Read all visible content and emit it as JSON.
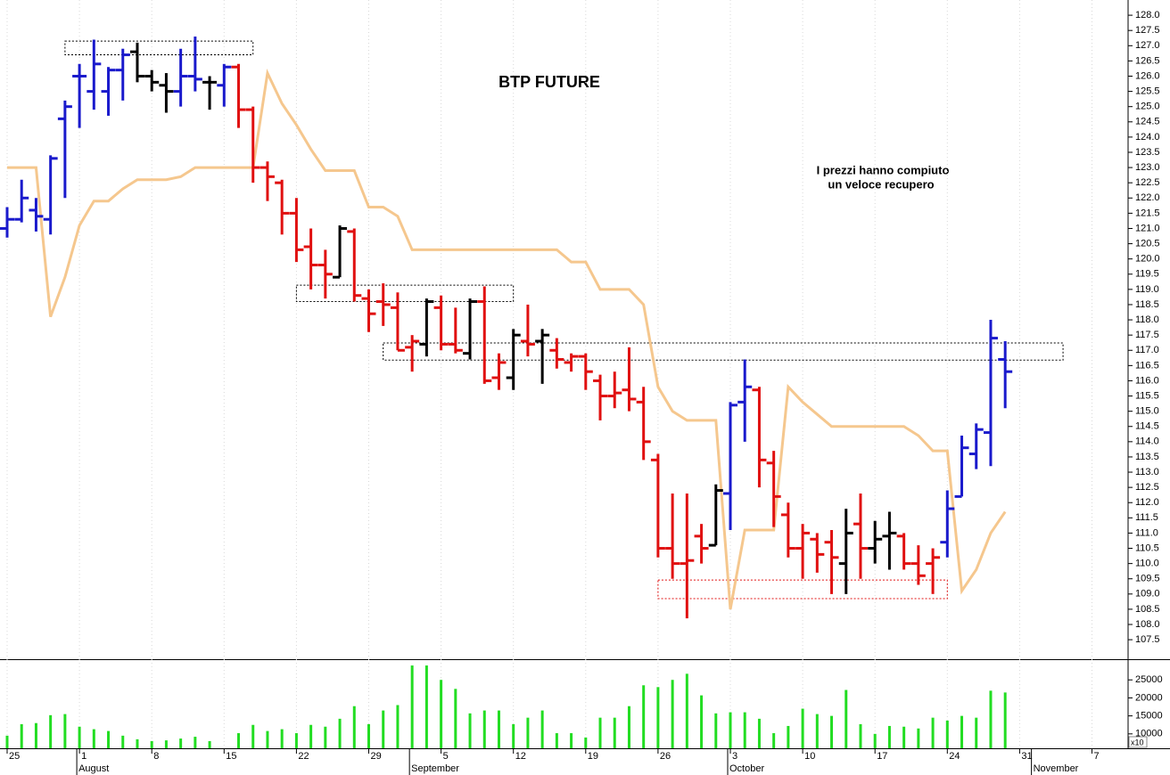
{
  "chart_data": {
    "type": "ohlc",
    "title": "BTP FUTURE",
    "annotations": [
      "I prezzi hanno compiuto",
      "un veloce recupero"
    ],
    "annotation_color": "#1a1acc",
    "categories": [
      "25",
      null,
      null,
      null,
      null,
      "1",
      null,
      null,
      null,
      null,
      "8",
      null,
      null,
      null,
      null,
      "15",
      null,
      null,
      null,
      null,
      "22",
      null,
      null,
      null,
      null,
      "29",
      null,
      null,
      null,
      null,
      "5",
      null,
      null,
      null,
      null,
      "12",
      null,
      null,
      null,
      null,
      "19",
      null,
      null,
      null,
      null,
      "26",
      null,
      null,
      null,
      null,
      "3",
      null,
      null,
      null,
      null,
      "10",
      null,
      null,
      null,
      null,
      "17",
      null,
      null,
      null,
      null,
      "24",
      null,
      null,
      null,
      null,
      "31",
      null,
      null,
      null,
      null,
      "7"
    ],
    "months": [
      null,
      null,
      null,
      null,
      null,
      "August",
      null,
      null,
      null,
      null,
      null,
      null,
      null,
      null,
      null,
      null,
      null,
      null,
      null,
      null,
      null,
      null,
      null,
      null,
      null,
      null,
      null,
      null,
      "September",
      null,
      null,
      null,
      null,
      null,
      null,
      null,
      null,
      null,
      null,
      null,
      null,
      null,
      null,
      null,
      null,
      null,
      null,
      null,
      null,
      null,
      "October",
      null,
      null,
      null,
      null,
      null,
      null,
      null,
      null,
      null,
      null,
      null,
      null,
      null,
      null,
      null,
      null,
      null,
      null,
      null,
      null,
      "November",
      null,
      null,
      null,
      null
    ],
    "open": [
      121.0,
      121.3,
      121.6,
      121.3,
      124.6,
      126.0,
      125.5,
      125.5,
      126.2,
      126.8,
      126.0,
      125.7,
      125.5,
      126.0,
      125.8,
      125.7,
      126.3,
      124.9,
      123.0,
      122.5,
      121.5,
      120.4,
      119.8,
      119.4,
      120.9,
      118.7,
      118.6,
      118.4,
      117.1,
      117.2,
      118.4,
      117.2,
      116.9,
      118.6,
      116.1,
      116.1,
      117.3,
      117.3,
      117.0,
      116.6,
      116.8,
      116.0,
      115.5,
      115.7,
      115.3,
      113.4,
      110.5,
      110.0,
      110.9,
      110.6,
      112.3,
      115.3,
      115.7,
      113.3,
      111.6,
      110.5,
      110.8,
      110.7,
      110.0,
      111.3,
      110.5,
      110.9,
      110.9,
      110.0,
      110.0,
      110.7,
      112.2,
      113.6,
      114.3,
      116.7,
      null,
      null,
      null,
      null,
      null,
      null
    ],
    "high": [
      121.7,
      122.6,
      122.0,
      123.4,
      125.2,
      126.4,
      127.2,
      126.3,
      126.9,
      127.1,
      126.2,
      126.1,
      126.9,
      127.3,
      126.0,
      126.4,
      126.4,
      125.0,
      123.2,
      122.6,
      122.0,
      121.0,
      120.3,
      121.1,
      121.0,
      119.0,
      119.2,
      118.9,
      117.5,
      118.7,
      118.8,
      118.4,
      118.7,
      119.1,
      116.9,
      117.7,
      118.5,
      117.7,
      117.4,
      116.9,
      116.9,
      116.2,
      116.3,
      117.1,
      115.8,
      113.6,
      112.3,
      112.3,
      111.3,
      112.6,
      115.3,
      116.7,
      115.8,
      113.7,
      112.0,
      111.3,
      111.0,
      111.1,
      111.8,
      112.3,
      111.4,
      111.7,
      111.0,
      110.6,
      110.5,
      112.4,
      114.2,
      114.6,
      118.0,
      117.3,
      null,
      null,
      null,
      null,
      null,
      null
    ],
    "low": [
      120.7,
      121.2,
      120.9,
      120.8,
      122.0,
      124.3,
      124.9,
      124.7,
      125.2,
      125.8,
      125.5,
      124.8,
      125.0,
      125.5,
      124.9,
      125.0,
      124.3,
      122.5,
      121.9,
      120.8,
      119.9,
      119.0,
      118.7,
      119.4,
      118.6,
      117.6,
      117.8,
      117.0,
      116.3,
      116.8,
      117.0,
      116.9,
      116.7,
      115.9,
      115.7,
      115.7,
      116.8,
      115.9,
      116.4,
      116.3,
      115.7,
      114.7,
      115.1,
      115.0,
      113.4,
      110.2,
      109.5,
      108.2,
      110.0,
      110.6,
      111.1,
      114.0,
      112.5,
      111.2,
      110.2,
      109.5,
      109.7,
      109.0,
      109.0,
      109.5,
      110.0,
      109.8,
      109.8,
      109.3,
      109.0,
      110.2,
      112.2,
      113.1,
      113.2,
      115.1,
      null,
      null,
      null,
      null,
      null,
      null
    ],
    "close": [
      121.3,
      122.0,
      121.4,
      123.3,
      125.0,
      126.0,
      126.4,
      126.2,
      126.7,
      126.0,
      125.8,
      125.5,
      126.0,
      125.9,
      125.8,
      126.3,
      124.9,
      123.0,
      122.7,
      121.5,
      120.3,
      119.8,
      119.5,
      121.0,
      118.8,
      118.2,
      118.5,
      117.0,
      117.3,
      118.6,
      117.2,
      117.0,
      118.6,
      116.0,
      116.6,
      117.5,
      117.2,
      117.5,
      116.7,
      116.8,
      116.3,
      115.5,
      115.6,
      115.4,
      114.0,
      110.5,
      110.0,
      110.1,
      110.5,
      112.4,
      115.2,
      115.8,
      113.4,
      112.2,
      110.5,
      111.0,
      110.3,
      110.2,
      111.0,
      110.5,
      110.8,
      111.0,
      110.0,
      109.6,
      110.2,
      111.8,
      113.8,
      114.4,
      117.4,
      116.3,
      null,
      null,
      null,
      null,
      null,
      null
    ],
    "colors": [
      "#1a1acc",
      "#1a1acc",
      "#1a1acc",
      "#1a1acc",
      "#1a1acc",
      "#1a1acc",
      "#1a1acc",
      "#1a1acc",
      "#1a1acc",
      "#000000",
      "#000000",
      "#000000",
      "#1a1acc",
      "#1a1acc",
      "#000000",
      "#1a1acc",
      "#e01010",
      "#e01010",
      "#e01010",
      "#e01010",
      "#e01010",
      "#e01010",
      "#e01010",
      "#000000",
      "#e01010",
      "#e01010",
      "#e01010",
      "#e01010",
      "#e01010",
      "#000000",
      "#e01010",
      "#e01010",
      "#000000",
      "#e01010",
      "#e01010",
      "#000000",
      "#e01010",
      "#000000",
      "#e01010",
      "#e01010",
      "#e01010",
      "#e01010",
      "#e01010",
      "#e01010",
      "#e01010",
      "#e01010",
      "#e01010",
      "#e01010",
      "#e01010",
      "#000000",
      "#1a1acc",
      "#1a1acc",
      "#e01010",
      "#e01010",
      "#e01010",
      "#e01010",
      "#e01010",
      "#e01010",
      "#000000",
      "#e01010",
      "#000000",
      "#000000",
      "#e01010",
      "#e01010",
      "#e01010",
      "#1a1acc",
      "#1a1acc",
      "#1a1acc",
      "#1a1acc",
      "#1a1acc",
      null,
      null,
      null,
      null,
      null,
      null
    ],
    "moving_average": {
      "color": "#f5c78e",
      "values": [
        123.0,
        123.0,
        123.0,
        118.1,
        119.4,
        121.1,
        121.9,
        121.9,
        122.3,
        122.6,
        122.6,
        122.6,
        122.7,
        123.0,
        123.0,
        123.0,
        123.0,
        123.0,
        126.1,
        125.1,
        124.4,
        123.6,
        122.9,
        122.9,
        122.9,
        121.7,
        121.7,
        121.4,
        120.3,
        120.3,
        120.3,
        120.3,
        120.3,
        120.3,
        120.3,
        120.3,
        120.3,
        120.3,
        120.3,
        119.9,
        119.9,
        119.0,
        119.0,
        119.0,
        118.5,
        115.8,
        115.0,
        114.7,
        114.7,
        114.7,
        108.5,
        111.1,
        111.1,
        111.1,
        115.8,
        115.3,
        114.9,
        114.5,
        114.5,
        114.5,
        114.5,
        114.5,
        114.5,
        114.2,
        113.7,
        113.7,
        109.1,
        109.8,
        111.0,
        111.7,
        null,
        null,
        null,
        null,
        null,
        null
      ]
    },
    "boxes": [
      {
        "start": 4,
        "end": 17,
        "low": 126.7,
        "high": 127.15,
        "color": "#000000"
      },
      {
        "start": 20,
        "end": 35,
        "low": 118.6,
        "high": 119.14,
        "color": "#000000"
      },
      {
        "start": 26,
        "end": 73,
        "low": 116.68,
        "high": 117.24,
        "color": "#000000"
      },
      {
        "start": 45,
        "end": 65,
        "low": 108.85,
        "high": 109.46,
        "color": "#e01010"
      }
    ],
    "ylim": [
      106.86,
      128.5
    ],
    "yticks": [
      107.5,
      {
        "value": 108,
        "label": "108.0"
      },
      108.5,
      {
        "value": 109,
        "label": "109.0"
      },
      109.5,
      {
        "value": 110,
        "label": "110.0"
      },
      110.5,
      {
        "value": 111,
        "label": "111.0"
      },
      111.5,
      {
        "value": 112,
        "label": "112.0"
      },
      112.5,
      {
        "value": 113,
        "label": "113.0"
      },
      113.5,
      {
        "value": 114,
        "label": "114.0"
      },
      114.5,
      {
        "value": 115,
        "label": "115.0"
      },
      115.5,
      {
        "value": 116,
        "label": "116.0"
      },
      116.5,
      {
        "value": 117,
        "label": "117.0"
      },
      117.5,
      {
        "value": 118,
        "label": "118.0"
      },
      118.5,
      {
        "value": 119,
        "label": "119.0"
      },
      119.5,
      {
        "value": 120,
        "label": "120.0"
      },
      120.5,
      {
        "value": 121,
        "label": "121.0"
      },
      121.5,
      {
        "value": 122,
        "label": "122.0"
      },
      122.5,
      {
        "value": 123,
        "label": "123.0"
      },
      123.5,
      {
        "value": 124,
        "label": "124.0"
      },
      124.5,
      {
        "value": 125,
        "label": "125.0"
      },
      125.5,
      {
        "value": 126,
        "label": "126.0"
      },
      126.5,
      {
        "value": 127,
        "label": "127.0"
      },
      127.5,
      {
        "value": 128,
        "label": "128.0"
      }
    ],
    "volume": {
      "color": "#22dd22",
      "multiplier_label": "x10",
      "ylim": [
        6000,
        30500
      ],
      "yticks": [
        10000,
        15000,
        20000,
        25000
      ],
      "values": [
        9500,
        12700,
        13000,
        15200,
        15500,
        12000,
        11300,
        10800,
        9500,
        8500,
        8000,
        8200,
        8700,
        9200,
        8000,
        null,
        10200,
        12500,
        10800,
        11300,
        10200,
        12500,
        12000,
        14200,
        17700,
        12700,
        16500,
        18000,
        29000,
        29000,
        25000,
        22500,
        15700,
        16500,
        16500,
        12700,
        14500,
        16500,
        10200,
        10200,
        9000,
        14500,
        14500,
        17700,
        23500,
        23000,
        25000,
        26700,
        20700,
        15700,
        16000,
        16000,
        14200,
        10200,
        12200,
        17000,
        15500,
        15000,
        22200,
        12700,
        10000,
        12200,
        12000,
        11500,
        14500,
        13700,
        15000,
        14500,
        22000,
        21500,
        null,
        null,
        null,
        null,
        null,
        null
      ]
    }
  }
}
